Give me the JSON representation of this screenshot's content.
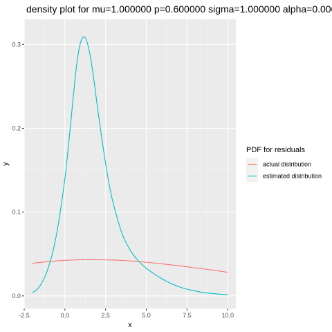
{
  "chart_data": {
    "type": "line",
    "title": "density plot for mu=1.000000 p=0.600000 sigma=1.000000 alpha=0.000000 r",
    "xlabel": "x",
    "ylabel": "y",
    "xlim": [
      -2.5,
      10.5
    ],
    "ylim": [
      -0.015,
      0.33
    ],
    "x_ticks": [
      -2.5,
      0.0,
      2.5,
      5.0,
      7.5,
      10.0
    ],
    "x_tick_labels": [
      "-2.5",
      "0.0",
      "2.5",
      "5.0",
      "7.5",
      "10.0"
    ],
    "y_ticks": [
      0.0,
      0.1,
      0.2,
      0.3
    ],
    "y_tick_labels": [
      "0.0",
      "0.1",
      "0.2",
      "0.3"
    ],
    "grid": true,
    "background": "#ebebeb",
    "legend": {
      "title": "PDF for residuals",
      "placement": "right"
    },
    "series": [
      {
        "name": "actual distribution",
        "color": "#f8766d",
        "x": [
          -2,
          -1,
          0,
          1,
          2,
          3,
          4,
          5,
          6,
          7,
          8,
          9,
          10
        ],
        "y": [
          0.039,
          0.041,
          0.0425,
          0.0432,
          0.0432,
          0.0428,
          0.0418,
          0.0402,
          0.0382,
          0.036,
          0.0335,
          0.031,
          0.0282
        ]
      },
      {
        "name": "estimated distribution",
        "color": "#00bfc4",
        "x": [
          -2,
          -1.75,
          -1.5,
          -1.25,
          -1,
          -0.75,
          -0.5,
          -0.25,
          0,
          0.25,
          0.5,
          0.75,
          1,
          1.25,
          1.5,
          1.75,
          2,
          2.25,
          2.5,
          2.75,
          3,
          3.5,
          4,
          4.5,
          5,
          5.5,
          6,
          6.5,
          7,
          7.5,
          8,
          8.5,
          9,
          9.5,
          10
        ],
        "y": [
          0.004,
          0.007,
          0.013,
          0.022,
          0.035,
          0.052,
          0.075,
          0.105,
          0.14,
          0.185,
          0.235,
          0.28,
          0.305,
          0.308,
          0.292,
          0.262,
          0.225,
          0.19,
          0.158,
          0.13,
          0.108,
          0.075,
          0.055,
          0.042,
          0.033,
          0.026,
          0.02,
          0.015,
          0.011,
          0.008,
          0.006,
          0.004,
          0.003,
          0.002,
          0.0015
        ]
      }
    ]
  }
}
